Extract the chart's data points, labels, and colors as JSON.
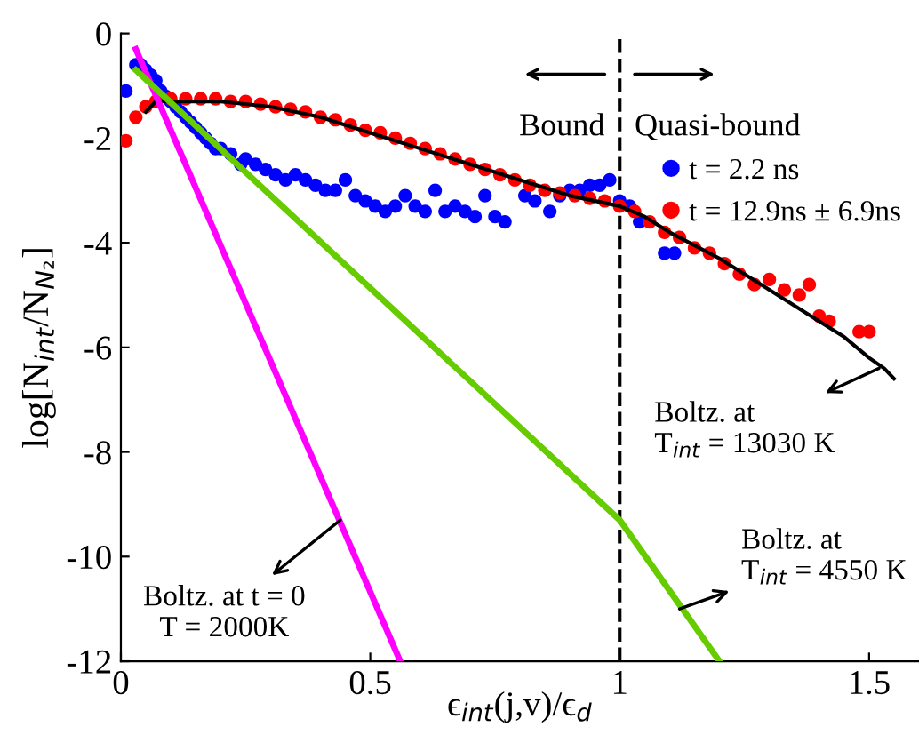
{
  "chart_data": {
    "type": "scatter",
    "xlabel": "ϵ$_{int}$(j,v)/ϵ$_{d}$",
    "ylabel": "log[N$_{int}$/N$_{N₂}$]",
    "xlim": [
      0,
      1.6
    ],
    "ylim": [
      -12,
      0
    ],
    "xticks": [
      0,
      0.5,
      1,
      1.5
    ],
    "yticks": [
      -12,
      -10,
      -8,
      -6,
      -4,
      -2,
      0
    ],
    "grid": false,
    "legend": "top right",
    "series": [
      {
        "name": "t = 2.2 ns",
        "marker": "circle",
        "color": "#0000ff",
        "x": [
          0.01,
          0.03,
          0.04,
          0.05,
          0.06,
          0.07,
          0.08,
          0.09,
          0.1,
          0.11,
          0.12,
          0.13,
          0.14,
          0.15,
          0.16,
          0.17,
          0.18,
          0.19,
          0.2,
          0.22,
          0.24,
          0.25,
          0.27,
          0.29,
          0.31,
          0.33,
          0.35,
          0.37,
          0.39,
          0.41,
          0.43,
          0.45,
          0.47,
          0.49,
          0.51,
          0.53,
          0.55,
          0.57,
          0.59,
          0.61,
          0.63,
          0.65,
          0.67,
          0.69,
          0.71,
          0.73,
          0.75,
          0.77,
          0.81,
          0.83,
          0.86,
          0.88,
          0.9,
          0.92,
          0.94,
          0.96,
          0.98,
          1.0,
          1.02,
          1.04,
          1.09,
          1.11
        ],
        "values": [
          -1.1,
          -0.6,
          -0.6,
          -0.7,
          -0.8,
          -0.9,
          -1.1,
          -1.2,
          -1.3,
          -1.4,
          -1.5,
          -1.6,
          -1.7,
          -1.8,
          -1.9,
          -2.0,
          -2.1,
          -2.2,
          -2.2,
          -2.3,
          -2.5,
          -2.4,
          -2.5,
          -2.6,
          -2.7,
          -2.8,
          -2.7,
          -2.8,
          -2.9,
          -3.0,
          -3.0,
          -2.8,
          -3.1,
          -3.2,
          -3.3,
          -3.4,
          -3.3,
          -3.1,
          -3.3,
          -3.4,
          -3.0,
          -3.4,
          -3.3,
          -3.4,
          -3.5,
          -3.1,
          -3.5,
          -3.6,
          -3.1,
          -3.2,
          -3.4,
          -3.1,
          -3.0,
          -3.0,
          -2.9,
          -2.9,
          -2.8,
          -3.2,
          -3.3,
          -3.6,
          -4.2,
          -4.2
        ]
      },
      {
        "name": "t = 12.9ns ± 6.9ns",
        "marker": "circle",
        "color": "#ff0000",
        "x": [
          0.01,
          0.03,
          0.05,
          0.07,
          0.1,
          0.13,
          0.16,
          0.19,
          0.22,
          0.25,
          0.28,
          0.31,
          0.34,
          0.37,
          0.4,
          0.43,
          0.46,
          0.49,
          0.52,
          0.55,
          0.58,
          0.61,
          0.64,
          0.67,
          0.7,
          0.73,
          0.76,
          0.79,
          0.82,
          0.85,
          0.88,
          0.91,
          0.94,
          0.97,
          1.0,
          1.03,
          1.06,
          1.09,
          1.12,
          1.15,
          1.18,
          1.21,
          1.24,
          1.27,
          1.3,
          1.33,
          1.36,
          1.38,
          1.4,
          1.42,
          1.48,
          1.5
        ],
        "values": [
          -2.05,
          -1.6,
          -1.4,
          -1.3,
          -1.25,
          -1.25,
          -1.25,
          -1.25,
          -1.3,
          -1.3,
          -1.35,
          -1.4,
          -1.45,
          -1.5,
          -1.6,
          -1.65,
          -1.75,
          -1.85,
          -1.9,
          -2.0,
          -2.1,
          -2.2,
          -2.3,
          -2.4,
          -2.5,
          -2.6,
          -2.7,
          -2.8,
          -2.9,
          -3.0,
          -3.05,
          -3.1,
          -3.15,
          -3.2,
          -3.3,
          -3.4,
          -3.6,
          -3.8,
          -3.9,
          -4.1,
          -4.2,
          -4.4,
          -4.6,
          -4.8,
          -4.7,
          -4.9,
          -5.0,
          -4.8,
          -5.4,
          -5.5,
          -5.7,
          -5.7
        ]
      },
      {
        "type": "line",
        "color": "#000000",
        "x": [
          0.05,
          0.07,
          0.1,
          0.2,
          0.3,
          0.4,
          0.5,
          0.6,
          0.7,
          0.8,
          0.9,
          1.0,
          1.05,
          1.1,
          1.2,
          1.3,
          1.4,
          1.45,
          1.5,
          1.53,
          1.55
        ],
        "values": [
          -1.5,
          -1.3,
          -1.3,
          -1.3,
          -1.4,
          -1.6,
          -1.9,
          -2.2,
          -2.5,
          -2.8,
          -3.1,
          -3.3,
          -3.5,
          -3.8,
          -4.3,
          -4.9,
          -5.5,
          -5.8,
          -6.2,
          -6.4,
          -6.6
        ]
      },
      {
        "type": "line",
        "color": "#ff00ff",
        "x": [
          0.03,
          0.56
        ],
        "values": [
          -0.3,
          -12
        ]
      },
      {
        "type": "line",
        "color": "#66cc00",
        "x": [
          0.03,
          1.0,
          1.2
        ],
        "values": [
          -0.7,
          -9.3,
          -12
        ]
      }
    ],
    "ref_lines": [
      {
        "axis": "x",
        "value": 1,
        "color": "#000000",
        "line_style": "dashed"
      }
    ],
    "annotations": [
      "Bound",
      "Quasi-bound",
      {
        "text": "Boltz. at t = 0\nT = 2000K",
        "x": 0.44,
        "y": -9.3
      },
      {
        "text": "Boltz. at\nT$_{int}$ = 4550 K",
        "x": 1.12,
        "y": -11.0
      },
      {
        "text": "Boltz. at\nT$_{int}$ = 13030 K",
        "x": 1.52,
        "y": -6.4
      }
    ]
  }
}
